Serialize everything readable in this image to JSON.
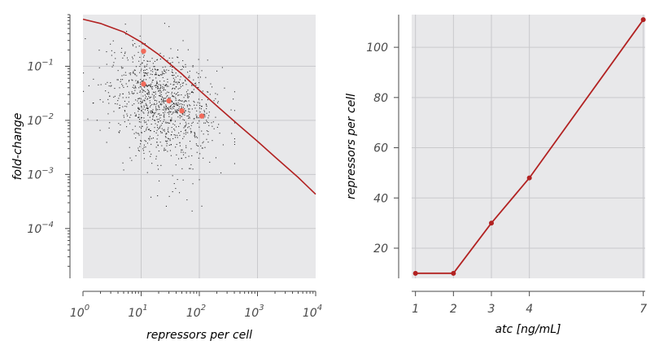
{
  "chart_data": [
    {
      "type": "scatter",
      "xlabel": "repressors per cell",
      "ylabel": "fold-change",
      "xscale": "log",
      "yscale": "log",
      "xlim": [
        1,
        10000
      ],
      "ylim": [
        1.2e-05,
        0.9
      ],
      "grid": true,
      "x_ticks": [
        {
          "value": 1,
          "base": "10",
          "exp": "0"
        },
        {
          "value": 10,
          "base": "10",
          "exp": "1"
        },
        {
          "value": 100,
          "base": "10",
          "exp": "2"
        },
        {
          "value": 1000,
          "base": "10",
          "exp": "3"
        },
        {
          "value": 10000,
          "base": "10",
          "exp": "4"
        }
      ],
      "y_ticks": [
        {
          "value": 0.1,
          "base": "10",
          "exp": "−1"
        },
        {
          "value": 0.01,
          "base": "10",
          "exp": "−2"
        },
        {
          "value": 0.001,
          "base": "10",
          "exp": "−3"
        },
        {
          "value": 0.0001,
          "base": "10",
          "exp": "−4"
        }
      ],
      "theory_curve": {
        "color": "#b22222",
        "x": [
          1,
          2,
          5,
          10,
          20,
          50,
          100,
          200,
          500,
          1000,
          2000,
          5000,
          10000
        ],
        "y": [
          0.74,
          0.62,
          0.43,
          0.28,
          0.165,
          0.072,
          0.036,
          0.0185,
          0.0078,
          0.0041,
          0.0021,
          0.00088,
          0.00043
        ]
      },
      "highlight_points": {
        "color": "#f26b5b",
        "x": [
          11,
          11,
          30,
          50,
          110
        ],
        "y": [
          0.19,
          0.047,
          0.023,
          0.015,
          0.012
        ]
      },
      "noise_cloud": {
        "color": "#000000",
        "count": 1100,
        "seed": 7
      }
    },
    {
      "type": "line",
      "xlabel": "atc [ng/mL]",
      "ylabel": "repressors per cell",
      "x": [
        1,
        2,
        3,
        4,
        7
      ],
      "y": [
        10,
        10,
        30,
        48,
        111
      ],
      "xlim": [
        0.9,
        7.05
      ],
      "ylim": [
        8,
        113
      ],
      "x_ticks": [
        "1",
        "2",
        "3",
        "4",
        "7"
      ],
      "y_ticks": [
        "20",
        "40",
        "60",
        "80",
        "100"
      ],
      "color": "#b22222",
      "grid": true
    }
  ],
  "style": {
    "plot_bg": "#e8e8ea",
    "grid_color": "#c9c9cc",
    "axis_color": "#4a4a4a"
  }
}
